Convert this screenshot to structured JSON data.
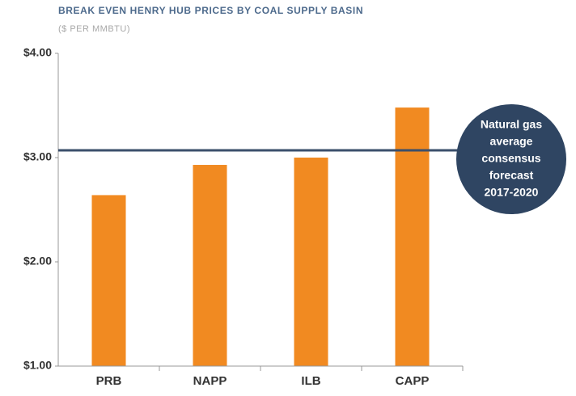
{
  "chart_data": {
    "type": "bar",
    "title": "BREAK EVEN HENRY HUB PRICES BY COAL SUPPLY BASIN",
    "subtitle": "($ PER MMBTU)",
    "categories": [
      "PRB",
      "NAPP",
      "ILB",
      "CAPP"
    ],
    "values": [
      2.64,
      2.93,
      3.0,
      3.48
    ],
    "color": "#f18a21",
    "ylim": [
      1,
      4
    ],
    "yticks": [
      {
        "value": 1,
        "label": "$1.00"
      },
      {
        "value": 2,
        "label": "$2.00"
      },
      {
        "value": 3,
        "label": "$3.00"
      },
      {
        "value": 4,
        "label": "$4.00"
      }
    ],
    "reference_line": {
      "value": 3.07,
      "color": "#3b4f6b"
    },
    "annotation": {
      "lines": [
        "Natural gas",
        "average",
        "consensus",
        "forecast",
        "2017-2020"
      ],
      "color": "#2f4562"
    }
  }
}
